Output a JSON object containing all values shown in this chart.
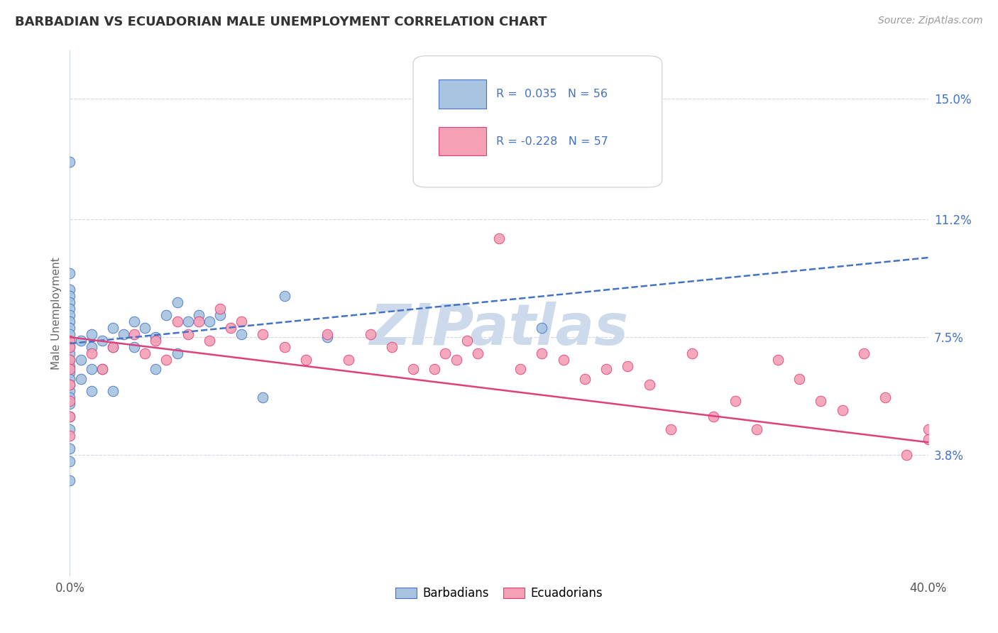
{
  "title": "BARBADIAN VS ECUADORIAN MALE UNEMPLOYMENT CORRELATION CHART",
  "source": "Source: ZipAtlas.com",
  "ylabel": "Male Unemployment",
  "xlim": [
    0.0,
    0.4
  ],
  "ylim": [
    0.0,
    0.165
  ],
  "yticks": [
    0.038,
    0.075,
    0.112,
    0.15
  ],
  "ytick_labels": [
    "3.8%",
    "7.5%",
    "11.2%",
    "15.0%"
  ],
  "xtick_labels": [
    "0.0%",
    "40.0%"
  ],
  "legend_r_barbadian": "R =  0.035",
  "legend_n_barbadian": "N = 56",
  "legend_r_ecuadorian": "R = -0.228",
  "legend_n_ecuadorian": "N = 57",
  "barbadian_color": "#a8c4e0",
  "ecuadorian_color": "#f5a0b5",
  "trend_barbadian_color": "#4472c4",
  "trend_ecuadorian_color": "#e0407a",
  "watermark_text": "ZIPatlas",
  "watermark_color": "#ccdaeb",
  "background_color": "#ffffff",
  "grid_color": "#d0d8e4",
  "barbadians_x": [
    0.0,
    0.0,
    0.0,
    0.0,
    0.0,
    0.0,
    0.0,
    0.0,
    0.0,
    0.0,
    0.0,
    0.0,
    0.0,
    0.0,
    0.0,
    0.0,
    0.0,
    0.0,
    0.0,
    0.0,
    0.0,
    0.0,
    0.0,
    0.0,
    0.0,
    0.0,
    0.005,
    0.005,
    0.005,
    0.01,
    0.01,
    0.01,
    0.01,
    0.015,
    0.015,
    0.02,
    0.02,
    0.02,
    0.025,
    0.03,
    0.03,
    0.035,
    0.04,
    0.04,
    0.045,
    0.05,
    0.05,
    0.055,
    0.06,
    0.065,
    0.07,
    0.08,
    0.09,
    0.1,
    0.12,
    0.22
  ],
  "barbadians_y": [
    0.13,
    0.095,
    0.09,
    0.088,
    0.086,
    0.084,
    0.082,
    0.08,
    0.078,
    0.076,
    0.074,
    0.072,
    0.07,
    0.068,
    0.066,
    0.064,
    0.062,
    0.06,
    0.058,
    0.056,
    0.054,
    0.05,
    0.046,
    0.04,
    0.036,
    0.03,
    0.074,
    0.068,
    0.062,
    0.076,
    0.072,
    0.065,
    0.058,
    0.074,
    0.065,
    0.078,
    0.072,
    0.058,
    0.076,
    0.08,
    0.072,
    0.078,
    0.075,
    0.065,
    0.082,
    0.086,
    0.07,
    0.08,
    0.082,
    0.08,
    0.082,
    0.076,
    0.056,
    0.088,
    0.075,
    0.078
  ],
  "ecuadorians_x": [
    0.0,
    0.0,
    0.0,
    0.0,
    0.0,
    0.0,
    0.0,
    0.0,
    0.01,
    0.015,
    0.02,
    0.03,
    0.035,
    0.04,
    0.045,
    0.05,
    0.055,
    0.06,
    0.065,
    0.07,
    0.075,
    0.08,
    0.09,
    0.1,
    0.11,
    0.12,
    0.13,
    0.14,
    0.15,
    0.16,
    0.17,
    0.175,
    0.18,
    0.185,
    0.19,
    0.2,
    0.21,
    0.22,
    0.23,
    0.24,
    0.25,
    0.26,
    0.27,
    0.28,
    0.29,
    0.3,
    0.31,
    0.32,
    0.33,
    0.34,
    0.35,
    0.36,
    0.37,
    0.38,
    0.39,
    0.4,
    0.4
  ],
  "ecuadorians_y": [
    0.074,
    0.072,
    0.068,
    0.065,
    0.06,
    0.055,
    0.05,
    0.044,
    0.07,
    0.065,
    0.072,
    0.076,
    0.07,
    0.074,
    0.068,
    0.08,
    0.076,
    0.08,
    0.074,
    0.084,
    0.078,
    0.08,
    0.076,
    0.072,
    0.068,
    0.076,
    0.068,
    0.076,
    0.072,
    0.065,
    0.065,
    0.07,
    0.068,
    0.074,
    0.07,
    0.106,
    0.065,
    0.07,
    0.068,
    0.062,
    0.065,
    0.066,
    0.06,
    0.046,
    0.07,
    0.05,
    0.055,
    0.046,
    0.068,
    0.062,
    0.055,
    0.052,
    0.07,
    0.056,
    0.038,
    0.043,
    0.046
  ]
}
